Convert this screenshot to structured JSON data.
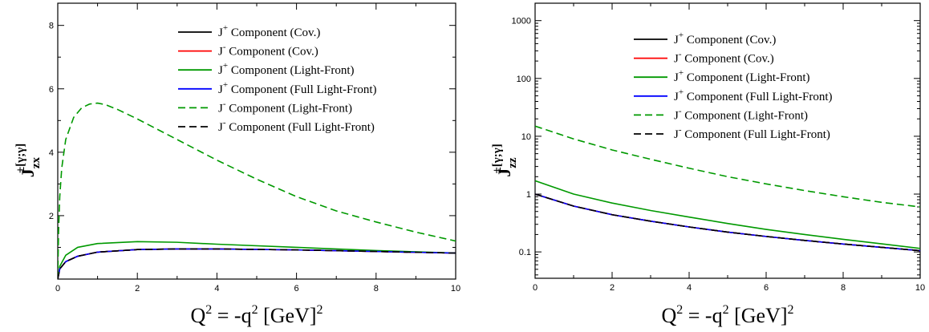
{
  "chart_data": [
    {
      "type": "line",
      "title": "",
      "xlabel": "Q^2 = -q^2 [GeV]^2",
      "xlabel_parts": [
        "Q",
        "2",
        " = -q",
        "2",
        " [GeV]",
        "2"
      ],
      "ylabel": "J_zx^{±[γ;γ]}",
      "ylabel_parts": {
        "base": "J",
        "sup": "±[γ;γ]",
        "sub": "zx"
      },
      "xlim": [
        0,
        10
      ],
      "ylim": [
        0,
        8.7
      ],
      "yscale": "linear",
      "x_ticks": [
        0,
        2,
        4,
        6,
        8,
        10
      ],
      "y_ticks": [
        2,
        4,
        6,
        8
      ],
      "grid": false,
      "legend_position": "top-right",
      "series": [
        {
          "name": "J+ Component  (Cov.)",
          "label_parts": [
            "J",
            "+",
            " Component  (Cov.)"
          ],
          "color": "#000000",
          "dash": "solid",
          "x": [
            0,
            0.05,
            0.2,
            0.5,
            1,
            2,
            3,
            4,
            6,
            8,
            10
          ],
          "y": [
            0,
            0.32,
            0.55,
            0.72,
            0.85,
            0.93,
            0.95,
            0.95,
            0.92,
            0.87,
            0.82
          ]
        },
        {
          "name": "J- Component   (Cov.)",
          "label_parts": [
            "J",
            "-",
            " Component   (Cov.)"
          ],
          "color": "#ff0000",
          "dash": "solid",
          "x": [
            0,
            0.05,
            0.2,
            0.5,
            1,
            2,
            3,
            4,
            6,
            8,
            10
          ],
          "y": [
            0,
            0.32,
            0.55,
            0.72,
            0.85,
            0.93,
            0.95,
            0.95,
            0.92,
            0.87,
            0.82
          ]
        },
        {
          "name": "J+ Component (Light-Front)",
          "label_parts": [
            "J",
            "+",
            " Component (Light-Front)"
          ],
          "color": "#009900",
          "dash": "solid",
          "x": [
            0,
            0.05,
            0.2,
            0.5,
            1,
            2,
            3,
            4,
            6,
            8,
            10
          ],
          "y": [
            0,
            0.4,
            0.75,
            1.0,
            1.12,
            1.18,
            1.16,
            1.1,
            1.0,
            0.9,
            0.82
          ]
        },
        {
          "name": "J+ Component (Full Light-Front)",
          "label_parts": [
            "J",
            "+",
            " Component (Full Light-Front)"
          ],
          "color": "#0000ff",
          "dash": "solid",
          "x": [
            0,
            0.05,
            0.2,
            0.5,
            1,
            2,
            3,
            4,
            6,
            8,
            10
          ],
          "y": [
            0,
            0.32,
            0.55,
            0.72,
            0.85,
            0.93,
            0.95,
            0.95,
            0.92,
            0.87,
            0.82
          ]
        },
        {
          "name": "J- Component (Light-Front)",
          "label_parts": [
            "J",
            "-",
            " Component (Light-Front)"
          ],
          "color": "#009900",
          "dash": "dashed",
          "x": [
            0,
            0.02,
            0.05,
            0.1,
            0.2,
            0.4,
            0.6,
            0.8,
            1.0,
            1.2,
            1.5,
            2,
            3,
            4,
            5,
            6,
            7,
            8,
            9,
            10
          ],
          "y": [
            0,
            1.5,
            2.6,
            3.5,
            4.4,
            5.1,
            5.4,
            5.52,
            5.55,
            5.5,
            5.35,
            5.05,
            4.4,
            3.75,
            3.15,
            2.6,
            2.15,
            1.8,
            1.48,
            1.2
          ]
        },
        {
          "name": "J- Component (Full Light-Front)",
          "label_parts": [
            "J",
            "-",
            " Component (Full Light-Front)"
          ],
          "color": "#000000",
          "dash": "dashed",
          "x": [
            0,
            0.05,
            0.2,
            0.5,
            1,
            2,
            3,
            4,
            6,
            8,
            10
          ],
          "y": [
            0,
            0.32,
            0.55,
            0.72,
            0.85,
            0.93,
            0.95,
            0.95,
            0.92,
            0.87,
            0.82
          ]
        }
      ]
    },
    {
      "type": "line",
      "title": "",
      "xlabel": "Q^2 = -q^2 [GeV]^2",
      "xlabel_parts": [
        "Q",
        "2",
        " = -q",
        "2",
        " [GeV]",
        "2"
      ],
      "ylabel": "J_zz^{±[γ;γ]}",
      "ylabel_parts": {
        "base": "J",
        "sup": "±[γ;γ]",
        "sub": "zz"
      },
      "xlim": [
        0,
        10
      ],
      "ylim": [
        0.035,
        2000
      ],
      "yscale": "log",
      "x_ticks": [
        0,
        2,
        4,
        6,
        8,
        10
      ],
      "y_ticks": [
        0.1,
        1,
        10,
        100,
        1000
      ],
      "y_tick_labels": [
        "0.1",
        "1",
        "10",
        "100",
        "1000"
      ],
      "grid": false,
      "legend_position": "top-right",
      "series": [
        {
          "name": "J+ Component (Cov.)",
          "label_parts": [
            "J",
            "+",
            " Component (Cov.)"
          ],
          "color": "#000000",
          "dash": "solid",
          "x": [
            0,
            1,
            2,
            3,
            4,
            5,
            6,
            7,
            8,
            9,
            10
          ],
          "y": [
            1.0,
            0.62,
            0.44,
            0.34,
            0.27,
            0.22,
            0.185,
            0.158,
            0.137,
            0.12,
            0.105
          ]
        },
        {
          "name": "J- Component (Cov.)",
          "label_parts": [
            "J",
            "-",
            " Component (Cov.)"
          ],
          "color": "#ff0000",
          "dash": "solid",
          "x": [
            0,
            1,
            2,
            3,
            4,
            5,
            6,
            7,
            8,
            9,
            10
          ],
          "y": [
            1.0,
            0.62,
            0.44,
            0.34,
            0.27,
            0.22,
            0.185,
            0.158,
            0.137,
            0.12,
            0.105
          ]
        },
        {
          "name": "J+ Component (Light-Front)",
          "label_parts": [
            "J",
            "+",
            " Component (Light-Front)"
          ],
          "color": "#009900",
          "dash": "solid",
          "x": [
            0,
            1,
            2,
            3,
            4,
            5,
            6,
            7,
            8,
            9,
            10
          ],
          "y": [
            1.7,
            1.0,
            0.7,
            0.52,
            0.4,
            0.31,
            0.245,
            0.2,
            0.165,
            0.138,
            0.115
          ]
        },
        {
          "name": "J+ Component (Full Light-Front)",
          "label_parts": [
            "J",
            "+",
            " Component (Full Light-Front)"
          ],
          "color": "#0000ff",
          "dash": "solid",
          "x": [
            0,
            1,
            2,
            3,
            4,
            5,
            6,
            7,
            8,
            9,
            10
          ],
          "y": [
            1.0,
            0.62,
            0.44,
            0.34,
            0.27,
            0.22,
            0.185,
            0.158,
            0.137,
            0.12,
            0.105
          ]
        },
        {
          "name": "J- Component (Light-Front)",
          "label_parts": [
            "J",
            "-",
            " Component (Light-Front)"
          ],
          "color": "#009900",
          "dash": "dashed",
          "x": [
            0,
            1,
            2,
            3,
            4,
            5,
            6,
            7,
            8,
            9,
            10
          ],
          "y": [
            15,
            9,
            5.8,
            4.0,
            2.8,
            2.0,
            1.5,
            1.15,
            0.9,
            0.72,
            0.6
          ]
        },
        {
          "name": "J- Component (Full Light-Front)",
          "label_parts": [
            "J",
            "-",
            " Component (Full Light-Front)"
          ],
          "color": "#000000",
          "dash": "dashed",
          "x": [
            0,
            1,
            2,
            3,
            4,
            5,
            6,
            7,
            8,
            9,
            10
          ],
          "y": [
            1.0,
            0.62,
            0.44,
            0.34,
            0.27,
            0.22,
            0.185,
            0.158,
            0.137,
            0.12,
            0.105
          ]
        }
      ]
    }
  ]
}
